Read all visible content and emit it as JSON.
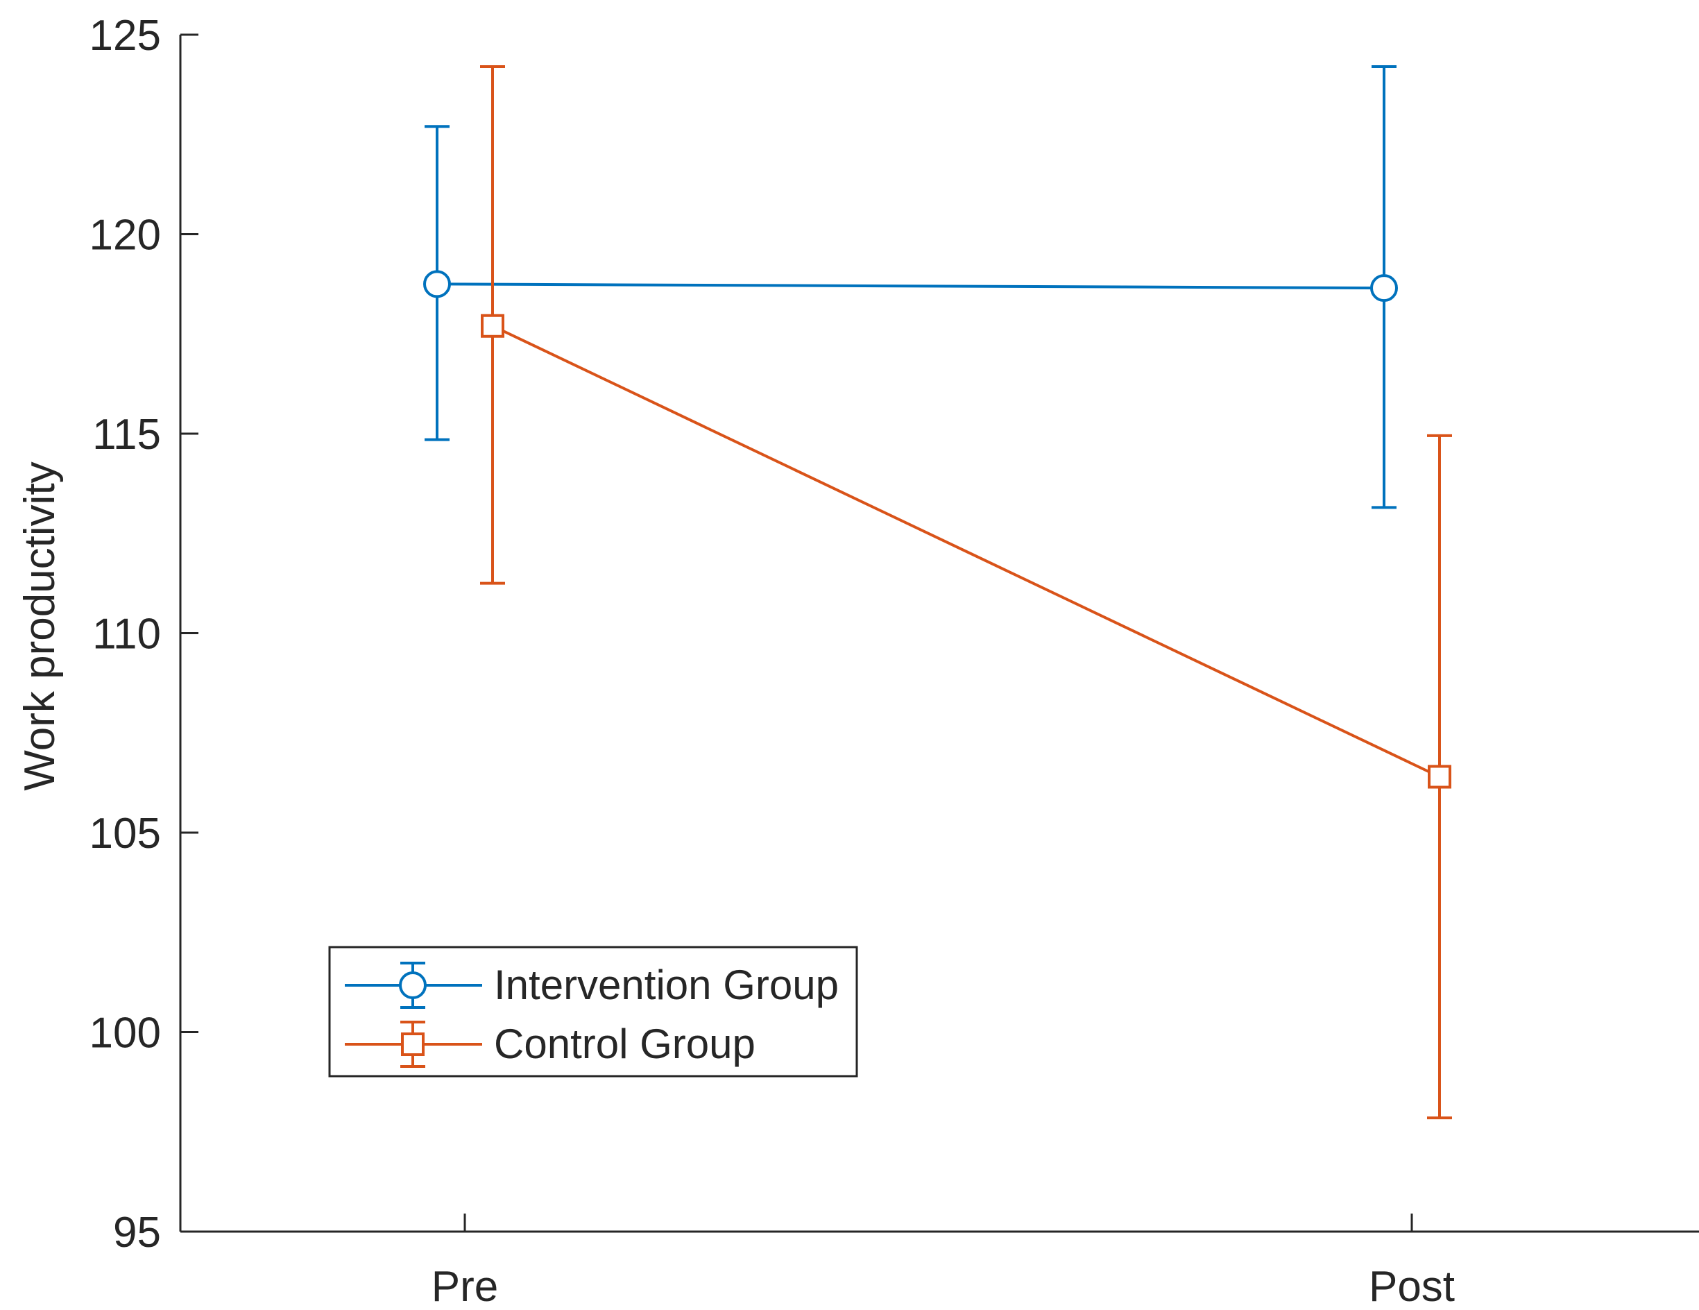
{
  "chart_data": {
    "type": "line",
    "title": "",
    "xlabel": "",
    "ylabel": "Work productivity",
    "categories": [
      "Pre",
      "Post"
    ],
    "ylim": [
      95,
      125
    ],
    "yticks": [
      95,
      100,
      105,
      110,
      115,
      120,
      125
    ],
    "grid": false,
    "legend_position": "bottom-left",
    "series": [
      {
        "name": "Intervention Group",
        "color": "#0072BD",
        "marker": "circle",
        "values": [
          118.75,
          118.65
        ],
        "err_low": [
          114.85,
          113.15
        ],
        "err_high": [
          122.7,
          124.2
        ]
      },
      {
        "name": "Control Group",
        "color": "#D95319",
        "marker": "square",
        "values": [
          117.7,
          106.4
        ],
        "err_low": [
          111.25,
          97.85
        ],
        "err_high": [
          124.2,
          114.95
        ]
      }
    ]
  }
}
